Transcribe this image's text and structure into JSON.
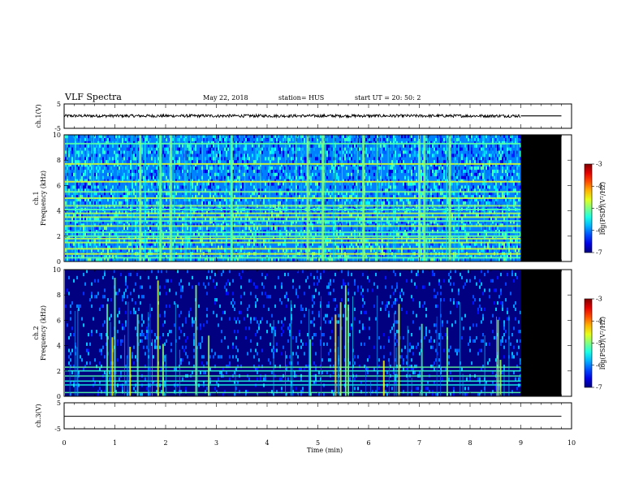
{
  "header": {
    "title": "VLF Spectra",
    "date": "May 22, 2018",
    "station": "station= HUS",
    "start": "start  UT  =   20: 50: 2"
  },
  "chart_data": [
    {
      "type": "line",
      "panel": "ch1-waveform",
      "ylabel": "ch.1(V)",
      "ylim": [
        -5,
        5
      ],
      "yticks": [
        5,
        -5
      ],
      "xlim": [
        0,
        10
      ],
      "baseline": 0.1,
      "noise_amplitude": 0.6,
      "data_end_min": 9.0
    },
    {
      "type": "heatmap",
      "panel": "ch1-spectrogram",
      "ylabel_channel": "ch.1",
      "ylabel": "Frequency (kHz)",
      "ylim": [
        0,
        10
      ],
      "yticks": [
        0,
        2,
        4,
        6,
        8,
        10
      ],
      "xlim": [
        0,
        10
      ],
      "data_end_min": 9.0,
      "colorbar": {
        "label": "log(PSD)(V²/Hz)",
        "range": [
          -7,
          -3
        ],
        "ticks": [
          -3,
          -4,
          -5,
          -6,
          -7
        ]
      },
      "horizontal_lines_khz": [
        0.3,
        0.6,
        1.0,
        1.5,
        1.8,
        2.0,
        2.3,
        2.8,
        3.2,
        3.5,
        3.8,
        4.1,
        4.4,
        5.0,
        5.5,
        6.3,
        7.7,
        9.3
      ],
      "bright_columns_min": [
        1.5,
        1.9,
        2.1,
        3.3,
        4.8,
        5.1,
        5.9,
        7.0,
        7.1,
        7.6
      ],
      "background_level": -6.0
    },
    {
      "type": "heatmap",
      "panel": "ch2-spectrogram",
      "ylabel_channel": "ch.2",
      "ylabel": "Frequency (kHz)",
      "ylim": [
        0,
        10
      ],
      "yticks": [
        0,
        2,
        4,
        6,
        8,
        10
      ],
      "xlim": [
        0,
        10
      ],
      "data_end_min": 9.0,
      "colorbar": {
        "label": "log(PSD)(V²/Hz)",
        "range": [
          -7,
          -3
        ],
        "ticks": [
          -3,
          -4,
          -5,
          -6,
          -7
        ]
      },
      "horizontal_lines_khz": [
        0.3,
        0.9,
        1.2,
        1.6,
        2.0,
        2.3
      ],
      "spikes_min": [
        0.85,
        0.95,
        1.0,
        1.3,
        1.45,
        1.85,
        1.95,
        2.6,
        2.85,
        4.85,
        5.35,
        5.45,
        5.55,
        5.6,
        6.3,
        6.6,
        7.05,
        7.55,
        8.55,
        8.6
      ],
      "background_level": -7.0
    },
    {
      "type": "line",
      "panel": "ch3-waveform",
      "ylabel": "ch.3(V)",
      "ylim": [
        -5,
        5
      ],
      "yticks": [
        5,
        -5
      ],
      "xlim": [
        0,
        10
      ],
      "baseline": -0.2,
      "noise_amplitude": 0,
      "data_end_min": 10.0
    }
  ],
  "x_axis": {
    "label": "Time (min)",
    "ticks": [
      0,
      1,
      2,
      3,
      4,
      5,
      6,
      7,
      8,
      9,
      10
    ]
  }
}
